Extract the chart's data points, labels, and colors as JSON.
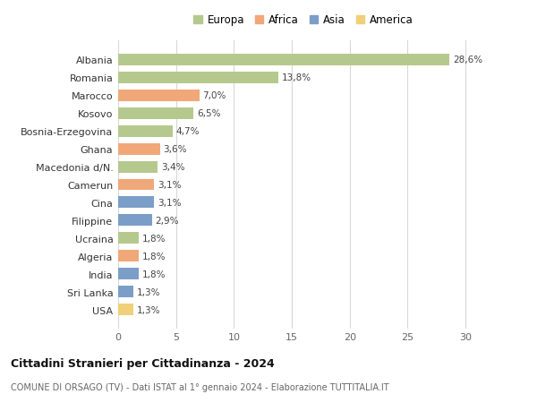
{
  "categories": [
    "USA",
    "Sri Lanka",
    "India",
    "Algeria",
    "Ucraina",
    "Filippine",
    "Cina",
    "Camerun",
    "Macedonia d/N.",
    "Ghana",
    "Bosnia-Erzegovina",
    "Kosovo",
    "Marocco",
    "Romania",
    "Albania"
  ],
  "values": [
    1.3,
    1.3,
    1.8,
    1.8,
    1.8,
    2.9,
    3.1,
    3.1,
    3.4,
    3.6,
    4.7,
    6.5,
    7.0,
    13.8,
    28.6
  ],
  "labels": [
    "1,3%",
    "1,3%",
    "1,8%",
    "1,8%",
    "1,8%",
    "2,9%",
    "3,1%",
    "3,1%",
    "3,4%",
    "3,6%",
    "4,7%",
    "6,5%",
    "7,0%",
    "13,8%",
    "28,6%"
  ],
  "continents": [
    "America",
    "Asia",
    "Asia",
    "Africa",
    "Europa",
    "Asia",
    "Asia",
    "Africa",
    "Europa",
    "Africa",
    "Europa",
    "Europa",
    "Africa",
    "Europa",
    "Europa"
  ],
  "continent_colors": {
    "Europa": "#b5c98e",
    "Africa": "#f0a878",
    "Asia": "#7b9ec8",
    "America": "#f0d078"
  },
  "legend_order": [
    "Europa",
    "Africa",
    "Asia",
    "America"
  ],
  "title": "Cittadini Stranieri per Cittadinanza - 2024",
  "subtitle": "COMUNE DI ORSAGO (TV) - Dati ISTAT al 1° gennaio 2024 - Elaborazione TUTTITALIA.IT",
  "xlim": [
    0,
    32
  ],
  "xticks": [
    0,
    5,
    10,
    15,
    20,
    25,
    30
  ],
  "background_color": "#ffffff",
  "grid_color": "#d8d8d8",
  "bar_height": 0.65
}
